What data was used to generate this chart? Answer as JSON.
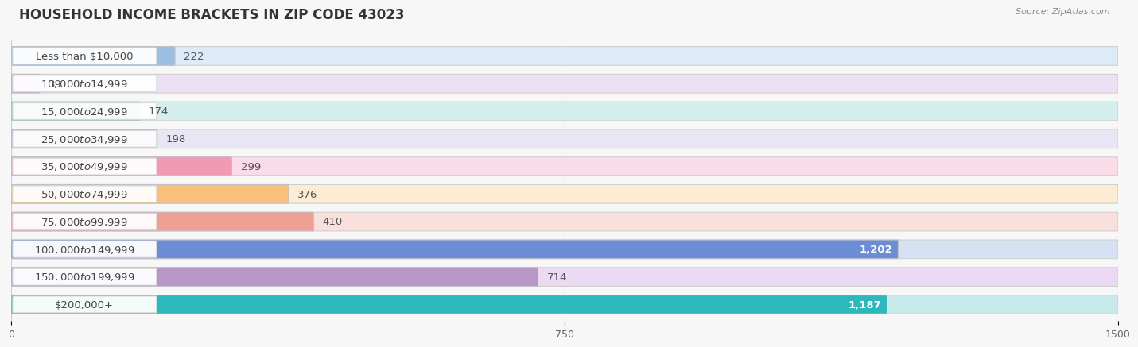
{
  "title": "HOUSEHOLD INCOME BRACKETS IN ZIP CODE 43023",
  "source": "Source: ZipAtlas.com",
  "categories": [
    "Less than $10,000",
    "$10,000 to $14,999",
    "$15,000 to $24,999",
    "$25,000 to $34,999",
    "$35,000 to $49,999",
    "$50,000 to $74,999",
    "$75,000 to $99,999",
    "$100,000 to $149,999",
    "$150,000 to $199,999",
    "$200,000+"
  ],
  "values": [
    222,
    39,
    174,
    198,
    299,
    376,
    410,
    1202,
    714,
    1187
  ],
  "bar_colors": [
    "#9bbfe0",
    "#c9aad6",
    "#7dcbc4",
    "#b0b0dc",
    "#f299b4",
    "#f8c07a",
    "#f0a090",
    "#6b8dd6",
    "#b896c8",
    "#2db8bc"
  ],
  "bar_bg_colors": [
    "#ddeaf7",
    "#ece0f4",
    "#d4eeec",
    "#e6e6f4",
    "#fadce8",
    "#fdecd4",
    "#fae0da",
    "#d4e2f4",
    "#ecdaf4",
    "#c8eaec"
  ],
  "xlim": [
    0,
    1500
  ],
  "xticks": [
    0,
    750,
    1500
  ],
  "bar_height": 0.68,
  "bg_color": "#f7f7f7",
  "title_fontsize": 12,
  "label_fontsize": 9.5,
  "value_fontsize": 9.5,
  "value_inside_threshold": 1000
}
